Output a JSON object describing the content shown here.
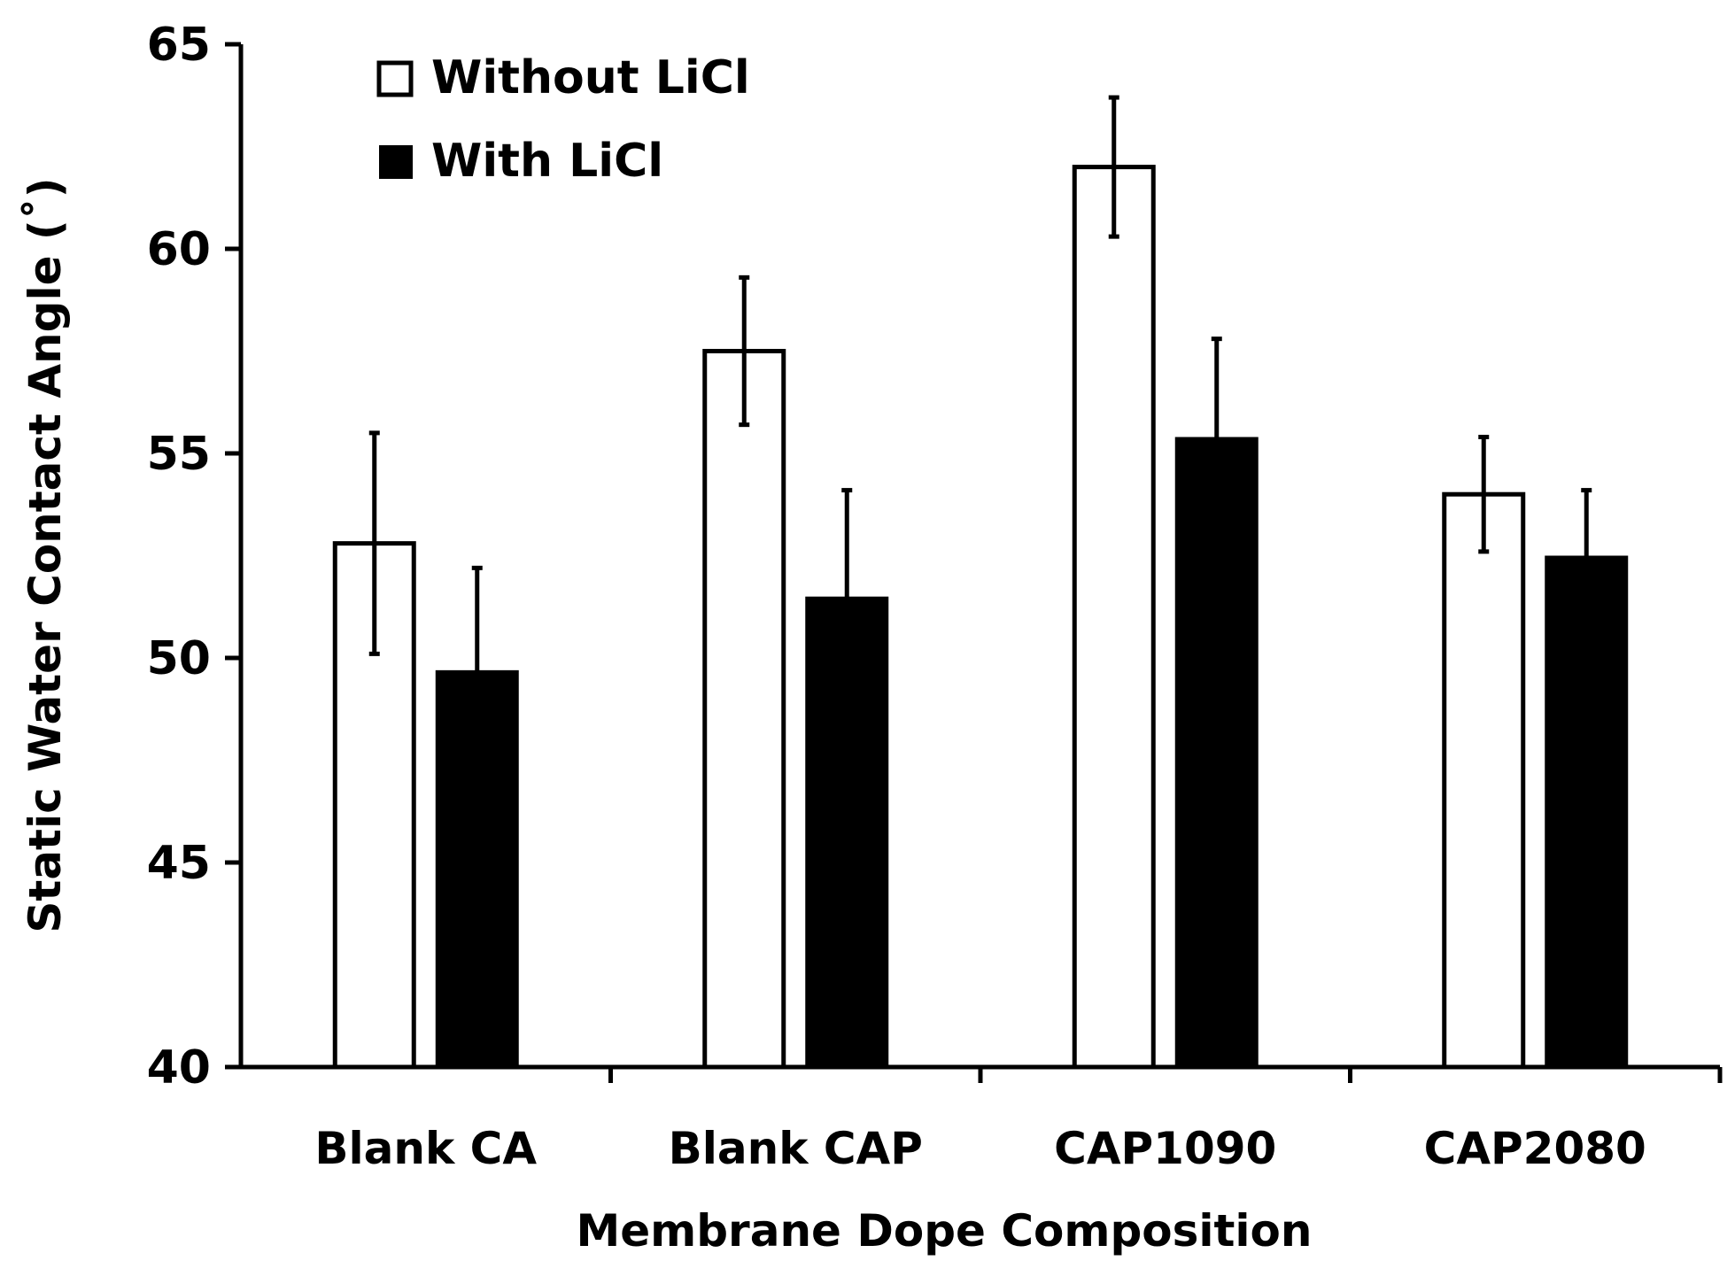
{
  "chart_data": {
    "type": "bar",
    "title": "",
    "xlabel": "Membrane Dope Composition",
    "ylabel": "Static Water Contact Angle (˚)",
    "ylim": [
      40,
      65
    ],
    "yticks": [
      40,
      45,
      50,
      55,
      60,
      65
    ],
    "categories": [
      "Blank CA",
      "Blank CAP",
      "CAP1090",
      "CAP2080"
    ],
    "series": [
      {
        "name": "Without LiCl",
        "fill": "#ffffff",
        "values": [
          52.8,
          57.5,
          62.0,
          54.0
        ],
        "errors": [
          2.7,
          1.8,
          1.7,
          1.4
        ]
      },
      {
        "name": "With LiCl",
        "fill": "#000000",
        "values": [
          49.7,
          51.5,
          55.4,
          52.5
        ],
        "errors": [
          2.5,
          2.6,
          2.4,
          1.6
        ]
      }
    ],
    "legend_position": "top-left",
    "grid": false
  }
}
